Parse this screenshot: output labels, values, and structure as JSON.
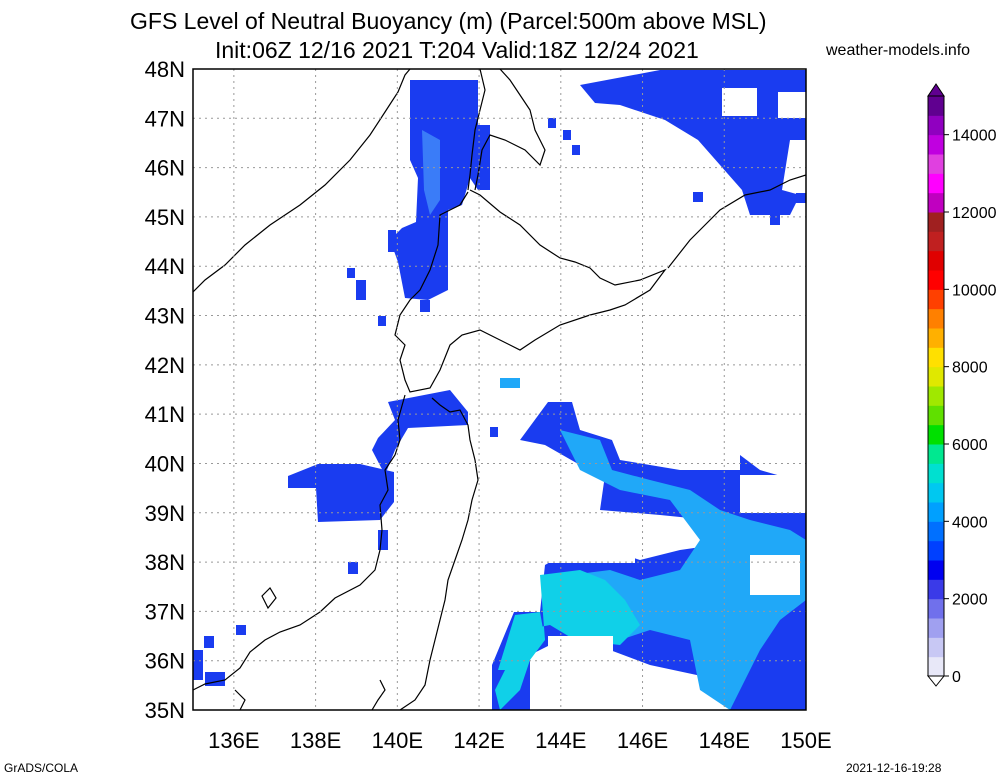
{
  "title_line1": "GFS Level of Neutral Buoyancy (m) (Parcel:500m above MSL)",
  "title_line2": "Init:06Z 12/16 2021 T:204 Valid:18Z 12/24 2021",
  "site": "weather-models.info",
  "footer_left": "GrADS/COLA",
  "footer_right": "2021-12-16-19:28",
  "map": {
    "lon_range": [
      135,
      150
    ],
    "lat_range": [
      35,
      48
    ],
    "lon_ticks": [
      "136E",
      "138E",
      "140E",
      "142E",
      "144E",
      "146E",
      "148E",
      "150E"
    ],
    "lat_ticks": [
      "35N",
      "36N",
      "37N",
      "38N",
      "39N",
      "40N",
      "41N",
      "42N",
      "43N",
      "44N",
      "45N",
      "46N",
      "47N",
      "48N"
    ]
  },
  "colorbar": {
    "labels": [
      "0",
      "2000",
      "4000",
      "6000",
      "8000",
      "10000",
      "12000",
      "14000"
    ],
    "colors": [
      "#e8e8f8",
      "#c8c8f4",
      "#a0a0f0",
      "#7070ec",
      "#3a3ae8",
      "#0000f0",
      "#0040ff",
      "#0070ff",
      "#00a0ff",
      "#00c8f0",
      "#00e0d0",
      "#00e890",
      "#00e000",
      "#60e000",
      "#a0e800",
      "#e0e800",
      "#ffe000",
      "#ffb000",
      "#ff8000",
      "#ff4000",
      "#ff0000",
      "#e00000",
      "#c02020",
      "#a02020",
      "#c000c0",
      "#ff00ff",
      "#e040e0",
      "#c000e0",
      "#9000c0",
      "#600090"
    ]
  }
}
